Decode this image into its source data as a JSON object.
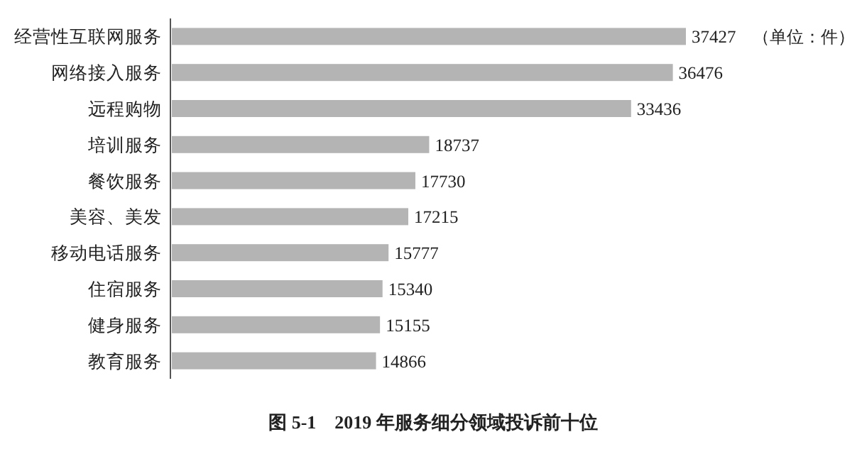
{
  "chart_data": {
    "type": "bar",
    "orientation": "horizontal",
    "title": "图 5-1　2019 年服务细分领域投诉前十位",
    "categories": [
      "经营性互联网服务",
      "网络接入服务",
      "远程购物",
      "培训服务",
      "餐饮服务",
      "美容、美发",
      "移动电话服务",
      "住宿服务",
      "健身服务",
      "教育服务"
    ],
    "values": [
      37427,
      36476,
      33436,
      18737,
      17730,
      17215,
      15777,
      15340,
      15155,
      14866
    ],
    "color": "#b4b4b4",
    "data_labels": true,
    "annotations": [
      "（单位：件）"
    ]
  }
}
